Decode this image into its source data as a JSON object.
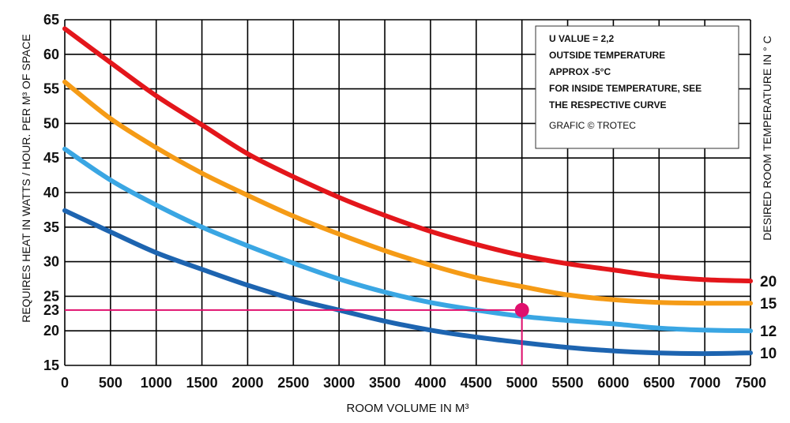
{
  "chart_data": {
    "type": "line",
    "xlabel": "ROOM VOLUME IN M³",
    "ylabel": "REQUIRES HEAT IN WATTS / HOUR. PER M³ OF SPACE",
    "y2label": "DESIRED ROOM TEMPERATURE IN ° C",
    "xlim": [
      0,
      7500
    ],
    "ylim": [
      15,
      65
    ],
    "grid": true,
    "x_ticks": [
      "0",
      "500",
      "1000",
      "1500",
      "2000",
      "2500",
      "3000",
      "3500",
      "4000",
      "4500",
      "5000",
      "5500",
      "6000",
      "6500",
      "7000",
      "7500"
    ],
    "y_ticks": [
      "15",
      "20",
      "25",
      "30",
      "35",
      "40",
      "45",
      "50",
      "55",
      "60",
      "65"
    ],
    "x": [
      0,
      500,
      1000,
      1500,
      2000,
      2500,
      3000,
      3500,
      4000,
      4500,
      5000,
      5500,
      6000,
      6500,
      7000,
      7500
    ],
    "series": [
      {
        "name": "20",
        "color": "#e3161b",
        "values": [
          63.7,
          58.8,
          54.0,
          49.8,
          45.6,
          42.3,
          39.3,
          36.7,
          34.4,
          32.5,
          30.9,
          29.7,
          28.8,
          27.9,
          27.4,
          27.2
        ]
      },
      {
        "name": "15",
        "color": "#f59b16",
        "values": [
          56.0,
          50.7,
          46.5,
          42.8,
          39.6,
          36.6,
          34.0,
          31.6,
          29.5,
          27.7,
          26.4,
          25.2,
          24.5,
          24.1,
          24.0,
          24.0
        ]
      },
      {
        "name": "12",
        "color": "#3aa6e3",
        "values": [
          46.3,
          41.8,
          38.2,
          35.0,
          32.3,
          29.8,
          27.5,
          25.6,
          24.1,
          23.0,
          22.1,
          21.5,
          21.0,
          20.4,
          20.1,
          20.0
        ]
      },
      {
        "name": "10",
        "color": "#1d64b0",
        "values": [
          37.4,
          34.3,
          31.3,
          28.9,
          26.6,
          24.6,
          23.0,
          21.4,
          20.1,
          19.1,
          18.3,
          17.6,
          17.1,
          16.8,
          16.7,
          16.8
        ]
      }
    ],
    "annotation": {
      "x": 5000,
      "y": 23,
      "x_label": "5000",
      "y_label": "23",
      "color": "#e0106e"
    },
    "highlighted_series_label": "12"
  },
  "note_box": {
    "lines": [
      "U VALUE = 2,2",
      "OUTSIDE TEMPERATURE",
      "APPROX -5°C",
      "FOR INSIDE TEMPERATURE, SEE",
      "THE RESPECTIVE CURVE"
    ],
    "credit": "GRAFIC © TROTEC"
  }
}
